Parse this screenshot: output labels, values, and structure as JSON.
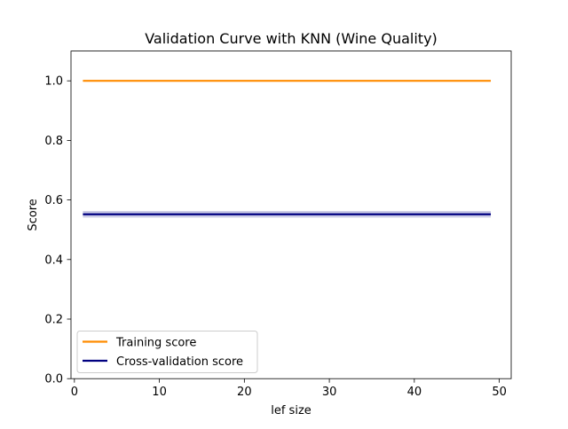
{
  "chart_data": {
    "type": "line",
    "title": "Validation Curve with KNN (Wine Quality)",
    "xlabel": "lef size",
    "ylabel": "Score",
    "xlim": [
      -0.4,
      51.4
    ],
    "ylim": [
      0.0,
      1.1
    ],
    "xticks": [
      0,
      10,
      20,
      30,
      40,
      50
    ],
    "yticks": [
      0.0,
      0.2,
      0.4,
      0.6,
      0.8,
      1.0
    ],
    "xtick_labels": [
      "0",
      "10",
      "20",
      "30",
      "40",
      "50"
    ],
    "ytick_labels": [
      "0.0",
      "0.2",
      "0.4",
      "0.6",
      "0.8",
      "1.0"
    ],
    "grid": false,
    "legend_position": "lower-left",
    "x": [
      1,
      49
    ],
    "series": [
      {
        "name": "Training score",
        "values": [
          1.0,
          1.0
        ],
        "band": [
          1.0,
          1.0
        ],
        "color": "#ff8c00"
      },
      {
        "name": "Cross-validation score",
        "values": [
          0.552,
          0.552
        ],
        "band": [
          0.541,
          0.563
        ],
        "color": "#000080"
      }
    ]
  }
}
